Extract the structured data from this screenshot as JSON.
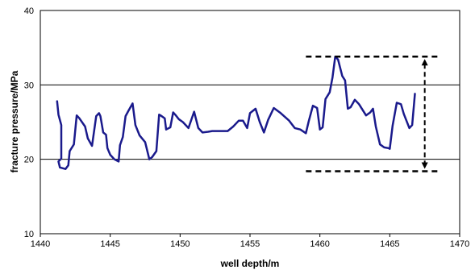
{
  "chart_data": {
    "type": "line",
    "title": "",
    "xlabel": "well depth/m",
    "ylabel": "fracture pressure/MPa",
    "xlim": [
      1440,
      1470
    ],
    "ylim": [
      10,
      40
    ],
    "x_ticks": [
      1440,
      1445,
      1450,
      1455,
      1460,
      1465,
      1470
    ],
    "y_ticks": [
      10,
      20,
      30,
      40
    ],
    "grid": "horizontal",
    "legend": "none",
    "series": [
      {
        "color": "#1a1a8c",
        "x": [
          1441.2,
          1441.3,
          1441.5,
          1441.5,
          1441.3,
          1441.4,
          1441.8,
          1442.0,
          1442.1,
          1442.4,
          1442.6,
          1442.8,
          1443.2,
          1443.4,
          1443.7,
          1444.0,
          1444.2,
          1444.3,
          1444.5,
          1444.7,
          1444.8,
          1445.0,
          1445.3,
          1445.6,
          1445.7,
          1445.9,
          1446.1,
          1446.3,
          1446.6,
          1446.8,
          1447.1,
          1447.5,
          1447.8,
          1448.0,
          1448.3,
          1448.5,
          1448.6,
          1448.9,
          1449.0,
          1449.3,
          1449.5,
          1449.7,
          1449.9,
          1450.2,
          1450.6,
          1451.0,
          1451.3,
          1451.6,
          1452.0,
          1452.3,
          1452.8,
          1453.4,
          1453.8,
          1454.2,
          1454.5,
          1454.8,
          1455.0,
          1455.4,
          1455.7,
          1456.0,
          1456.3,
          1456.7,
          1457.2,
          1457.8,
          1458.2,
          1458.6,
          1459.0,
          1459.2,
          1459.5,
          1459.8,
          1460.0,
          1460.2,
          1460.4,
          1460.7,
          1460.9,
          1461.1,
          1461.3,
          1461.6,
          1461.8,
          1462.0,
          1462.2,
          1462.5,
          1462.8,
          1463.3,
          1463.6,
          1463.8,
          1464.0,
          1464.3,
          1464.6,
          1464.9,
          1465.0,
          1465.2,
          1465.5,
          1465.8,
          1466.0,
          1466.4,
          1466.6,
          1466.8
        ],
        "y": [
          27.8,
          26.0,
          24.6,
          20.1,
          19.7,
          18.9,
          18.7,
          19.2,
          21.1,
          22.0,
          25.9,
          25.5,
          24.4,
          22.8,
          21.8,
          25.8,
          26.2,
          25.8,
          23.6,
          23.3,
          21.5,
          20.6,
          20.0,
          19.7,
          21.9,
          23.0,
          25.8,
          26.5,
          27.5,
          24.6,
          23.2,
          22.3,
          20.0,
          20.3,
          21.1,
          26.0,
          25.9,
          25.5,
          24.0,
          24.3,
          26.3,
          25.9,
          25.4,
          25.0,
          24.2,
          26.4,
          24.2,
          23.6,
          23.7,
          23.8,
          23.8,
          23.8,
          24.4,
          25.2,
          25.2,
          24.2,
          26.2,
          26.8,
          25.0,
          23.6,
          25.3,
          26.9,
          26.2,
          25.2,
          24.2,
          24.0,
          23.5,
          25.1,
          27.2,
          26.9,
          24.0,
          24.3,
          28.1,
          29.0,
          31.0,
          33.8,
          33.4,
          31.2,
          30.6,
          26.8,
          27.0,
          28.0,
          27.4,
          25.9,
          26.3,
          26.8,
          24.4,
          22.0,
          21.6,
          21.5,
          21.4,
          24.5,
          27.6,
          27.4,
          26.1,
          24.2,
          24.6,
          28.8
        ]
      }
    ],
    "annotation": {
      "type": "range-bracket",
      "top_y": 33.8,
      "bottom_y": 18.4,
      "x_start": 1459.0,
      "x_end": 1468.5,
      "arrow_x": 1467.5
    }
  }
}
